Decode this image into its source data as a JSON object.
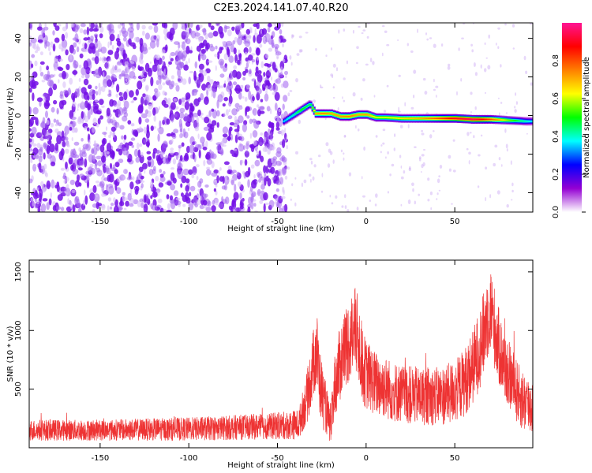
{
  "title": "C2E3.2024.141.07.40.R20",
  "chart_data": [
    {
      "type": "heatmap",
      "xlabel": "Height of straight line (km)",
      "ylabel": "Frequency (Hz)",
      "xlim": [
        -190,
        94
      ],
      "ylim": [
        -50,
        48
      ],
      "x_ticks": [
        "-150",
        "-100",
        "-50",
        "0",
        "50"
      ],
      "x_tick_values": [
        -150,
        -100,
        -50,
        0,
        50
      ],
      "y_ticks": [
        "-40",
        "-20",
        "0",
        "20",
        "40"
      ],
      "y_tick_values": [
        -40,
        -20,
        0,
        20,
        40
      ],
      "colorbar": {
        "label": "Normalized spectral amplitude",
        "range": [
          0,
          1
        ],
        "ticks": [
          "0.0",
          "0.2",
          "0.4",
          "0.6",
          "0.8"
        ],
        "tick_values": [
          0.0,
          0.2,
          0.4,
          0.6,
          0.8
        ],
        "colors": [
          "#ffffff",
          "#9400d3",
          "#0000ff",
          "#00ffff",
          "#00ff00",
          "#ffff00",
          "#ff7f00",
          "#ff0000",
          "#ff1493"
        ]
      },
      "noise_region": {
        "x": [
          -190,
          -45
        ],
        "y": [
          -50,
          48
        ],
        "color": "#7a1fe6"
      },
      "ridge": {
        "x": [
          -47,
          -42,
          -37,
          -32,
          -29,
          -25,
          -20,
          -15,
          -10,
          -5,
          0,
          5,
          10,
          20,
          30,
          40,
          50,
          60,
          70,
          80,
          90,
          94
        ],
        "freq": [
          -3,
          0,
          3,
          6,
          1,
          1,
          1,
          -0.5,
          -0.5,
          0.5,
          0.5,
          -1,
          -1,
          -1.5,
          -1.5,
          -1.5,
          -1.5,
          -2,
          -2,
          -2.5,
          -3,
          -3
        ],
        "amplitude": [
          0.35,
          0.4,
          0.5,
          0.45,
          0.7,
          0.75,
          0.7,
          0.72,
          0.75,
          0.7,
          0.72,
          0.6,
          0.6,
          0.65,
          0.7,
          0.8,
          0.9,
          0.95,
          0.8,
          0.55,
          0.4,
          0.35
        ]
      }
    },
    {
      "type": "line",
      "xlabel": "Height of straight line (km)",
      "ylabel": "SNR (10 * v/v)",
      "xlim": [
        -190,
        94
      ],
      "ylim": [
        0,
        1600
      ],
      "x_ticks": [
        "-150",
        "-100",
        "-50",
        "0",
        "50"
      ],
      "x_tick_values": [
        -150,
        -100,
        -50,
        0,
        50
      ],
      "y_ticks": [
        "500",
        "1000",
        "1500"
      ],
      "y_tick_values": [
        500,
        1000,
        1500
      ],
      "color": "#ee3333",
      "envelope": {
        "x": [
          -190,
          -150,
          -100,
          -60,
          -45,
          -38,
          -33,
          -30,
          -28,
          -26,
          -24,
          -22,
          -20,
          -18,
          -15,
          -12,
          -10,
          -8,
          -6,
          -4,
          -2,
          0,
          2,
          5,
          10,
          15,
          20,
          30,
          40,
          45,
          50,
          55,
          60,
          63,
          66,
          68,
          70,
          72,
          75,
          78,
          82,
          86,
          90,
          94
        ],
        "mean": [
          150,
          150,
          160,
          180,
          190,
          200,
          450,
          700,
          850,
          550,
          400,
          300,
          150,
          500,
          700,
          850,
          900,
          950,
          1000,
          900,
          700,
          620,
          600,
          550,
          520,
          480,
          460,
          440,
          440,
          450,
          480,
          550,
          680,
          800,
          950,
          1100,
          1200,
          1050,
          850,
          700,
          580,
          450,
          380,
          350
        ],
        "spread": [
          90,
          90,
          100,
          110,
          120,
          130,
          230,
          300,
          360,
          300,
          250,
          200,
          130,
          280,
          320,
          350,
          360,
          380,
          380,
          360,
          320,
          300,
          290,
          280,
          270,
          260,
          250,
          250,
          250,
          260,
          270,
          290,
          320,
          340,
          360,
          380,
          380,
          360,
          330,
          300,
          280,
          270,
          260,
          250
        ]
      }
    }
  ]
}
